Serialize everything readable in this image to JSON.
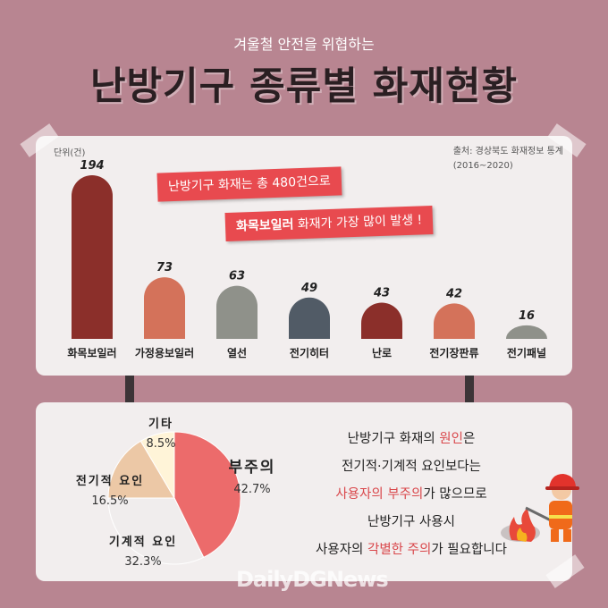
{
  "header": {
    "subtitle": "겨울철 안전을 위협하는",
    "title": "난방기구 종류별 화재현황"
  },
  "unit": "단위(건)",
  "source": {
    "line1": "출처: 경상북도 화재정보 통계",
    "line2": "(2016~2020)"
  },
  "banners": {
    "line1": "난방기구 화재는 총 480건으로",
    "line2_bold": "화목보일러",
    "line2_rest": " 화재가 가장 많이 발생 !"
  },
  "message": {
    "l1a": "난방기구 화재의 ",
    "l1b": "원인",
    "l1c": "은",
    "l2": "전기적·기계적 요인보다는",
    "l3a": "사용자의 부주의",
    "l3b": "가 많으므로",
    "l4": "난방기구 사용시",
    "l5a": "사용자의 ",
    "l5b": "각별한 주의",
    "l5c": "가 필요합니다"
  },
  "logo": "DailyDGNews",
  "chart_data": [
    {
      "type": "bar",
      "categories": [
        "화목보일러",
        "가정용보일러",
        "열선",
        "전기히터",
        "난로",
        "전기장판류",
        "전기패널"
      ],
      "values": [
        194,
        73,
        63,
        49,
        43,
        42,
        16
      ],
      "colors": [
        "#8b2f2a",
        "#d4725a",
        "#8f918a",
        "#515b66",
        "#8b2f2a",
        "#d4725a",
        "#8f918a"
      ],
      "ylabel": "단위(건)",
      "ylim": [
        0,
        194
      ]
    },
    {
      "type": "pie",
      "slices": [
        {
          "label": "부주의",
          "value": 42.7,
          "display": "42.7%",
          "color": "#ec6b6b"
        },
        {
          "label": "기계적 요인",
          "value": 32.3,
          "display": "32.3%",
          "color": "#f0eded"
        },
        {
          "label": "전기적 요인",
          "value": 16.5,
          "display": "16.5%",
          "color": "#ecc8a6"
        },
        {
          "label": "기타",
          "value": 8.5,
          "display": "8.5%",
          "color": "#fff4d8"
        }
      ]
    }
  ]
}
